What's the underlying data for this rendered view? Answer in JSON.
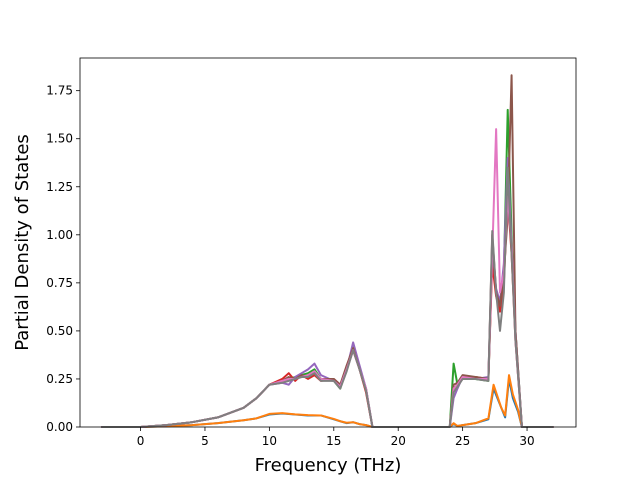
{
  "chart_data": {
    "type": "line",
    "title": "",
    "xlabel": "Frequency (THz)",
    "ylabel": "Partial Density of States",
    "xlim": [
      -4.7,
      33.8
    ],
    "ylim": [
      0,
      1.92
    ],
    "xticks": [
      0,
      5,
      10,
      15,
      20,
      25,
      30
    ],
    "yticks": [
      0.0,
      0.25,
      0.5,
      0.75,
      1.0,
      1.25,
      1.5,
      1.75
    ],
    "ytick_labels": [
      "0.00",
      "0.25",
      "0.50",
      "0.75",
      "1.00",
      "1.25",
      "1.50",
      "1.75"
    ],
    "grid": false,
    "legend": "none",
    "series": [
      {
        "color": "#1f77b4",
        "x": [
          -3,
          0,
          2,
          4,
          6,
          8,
          9,
          10,
          11,
          12,
          13,
          14,
          15,
          15.5,
          16,
          16.5,
          17,
          17.5,
          18,
          24,
          24.3,
          24.6,
          25,
          26,
          27,
          27.4,
          27.7,
          28,
          28.3,
          28.6,
          28.9,
          29.3,
          29.6,
          32
        ],
        "y": [
          0,
          0,
          0.004,
          0.01,
          0.02,
          0.035,
          0.045,
          0.065,
          0.07,
          0.065,
          0.06,
          0.06,
          0.04,
          0.03,
          0.02,
          0.025,
          0.015,
          0.01,
          0,
          0,
          0.015,
          0.005,
          0.01,
          0.02,
          0.04,
          0.2,
          0.15,
          0.1,
          0.05,
          0.25,
          0.15,
          0.08,
          0,
          0
        ]
      },
      {
        "color": "#ff7f0e",
        "x": [
          -3,
          0,
          2,
          4,
          6,
          8,
          9,
          10,
          11,
          12,
          13,
          14,
          15,
          15.5,
          16,
          16.5,
          17,
          17.5,
          18,
          24,
          24.3,
          24.6,
          25,
          26,
          27,
          27.4,
          27.7,
          28,
          28.3,
          28.6,
          28.9,
          29.3,
          29.6,
          32
        ],
        "y": [
          0,
          0,
          0.004,
          0.01,
          0.02,
          0.035,
          0.045,
          0.068,
          0.072,
          0.066,
          0.062,
          0.06,
          0.042,
          0.03,
          0.022,
          0.025,
          0.015,
          0.01,
          0,
          0,
          0.02,
          0.005,
          0.01,
          0.02,
          0.045,
          0.22,
          0.16,
          0.1,
          0.06,
          0.27,
          0.17,
          0.09,
          0,
          0
        ]
      },
      {
        "color": "#2ca02c",
        "x": [
          -3,
          0,
          2,
          4,
          6,
          8,
          9,
          10,
          11,
          11.5,
          12,
          12.5,
          13,
          13.5,
          14,
          15,
          15.5,
          16,
          16.5,
          17,
          17.5,
          18,
          24,
          24.3,
          24.6,
          25,
          26,
          27,
          27.3,
          27.6,
          27.9,
          28.2,
          28.5,
          28.8,
          29.1,
          29.6,
          32
        ],
        "y": [
          0,
          0,
          0.01,
          0.025,
          0.05,
          0.1,
          0.15,
          0.22,
          0.24,
          0.25,
          0.26,
          0.27,
          0.28,
          0.3,
          0.25,
          0.24,
          0.2,
          0.3,
          0.42,
          0.3,
          0.2,
          0,
          0,
          0.33,
          0.22,
          0.26,
          0.25,
          0.24,
          0.9,
          0.7,
          0.62,
          0.8,
          1.65,
          1.0,
          0.5,
          0,
          0
        ]
      },
      {
        "color": "#d62728",
        "x": [
          -3,
          0,
          2,
          4,
          6,
          8,
          9,
          10,
          11,
          11.5,
          12,
          12.5,
          13,
          13.5,
          14,
          15,
          15.5,
          16,
          16.5,
          17,
          17.5,
          18,
          24,
          24.3,
          24.6,
          25,
          26,
          27,
          27.3,
          27.6,
          27.9,
          28.2,
          28.5,
          28.8,
          29.1,
          29.6,
          32
        ],
        "y": [
          0,
          0,
          0.01,
          0.025,
          0.05,
          0.1,
          0.15,
          0.22,
          0.25,
          0.28,
          0.24,
          0.27,
          0.25,
          0.27,
          0.24,
          0.25,
          0.22,
          0.3,
          0.4,
          0.3,
          0.18,
          0,
          0,
          0.2,
          0.22,
          0.25,
          0.26,
          0.25,
          0.85,
          0.68,
          0.6,
          0.75,
          1.2,
          0.9,
          0.45,
          0,
          0
        ]
      },
      {
        "color": "#9467bd",
        "x": [
          -3,
          0,
          2,
          4,
          6,
          8,
          9,
          10,
          11,
          11.5,
          12,
          12.5,
          13,
          13.5,
          14,
          15,
          15.5,
          16,
          16.5,
          17,
          17.5,
          18,
          24,
          24.3,
          24.6,
          25,
          26,
          27,
          27.3,
          27.6,
          27.9,
          28.2,
          28.5,
          28.8,
          29.1,
          29.6,
          32
        ],
        "y": [
          0,
          0,
          0.01,
          0.025,
          0.05,
          0.1,
          0.15,
          0.22,
          0.23,
          0.22,
          0.26,
          0.28,
          0.3,
          0.33,
          0.27,
          0.24,
          0.21,
          0.3,
          0.44,
          0.32,
          0.2,
          0,
          0,
          0.15,
          0.2,
          0.26,
          0.25,
          0.26,
          0.95,
          0.72,
          0.65,
          0.85,
          1.4,
          0.95,
          0.5,
          0,
          0
        ]
      },
      {
        "color": "#8c564b",
        "x": [
          -3,
          0,
          2,
          4,
          6,
          8,
          9,
          10,
          11,
          11.5,
          12,
          12.5,
          13,
          13.5,
          14,
          15,
          15.5,
          16,
          16.5,
          17,
          17.5,
          18,
          24,
          24.3,
          24.6,
          25,
          26,
          27,
          27.3,
          27.6,
          27.9,
          28.2,
          28.5,
          28.8,
          29.1,
          29.6,
          32
        ],
        "y": [
          0,
          0,
          0.01,
          0.025,
          0.05,
          0.1,
          0.15,
          0.22,
          0.24,
          0.26,
          0.25,
          0.27,
          0.26,
          0.28,
          0.25,
          0.25,
          0.22,
          0.32,
          0.41,
          0.3,
          0.19,
          0,
          0,
          0.22,
          0.23,
          0.27,
          0.26,
          0.25,
          1.0,
          0.7,
          0.63,
          0.8,
          1.1,
          1.83,
          0.5,
          0,
          0
        ]
      },
      {
        "color": "#e377c2",
        "x": [
          -3,
          0,
          2,
          4,
          6,
          8,
          9,
          10,
          11,
          11.5,
          12,
          12.5,
          13,
          13.5,
          14,
          15,
          15.5,
          16,
          16.5,
          17,
          17.5,
          18,
          24,
          24.3,
          24.6,
          25,
          26,
          27,
          27.3,
          27.6,
          27.9,
          28.2,
          28.5,
          28.8,
          29.1,
          29.6,
          32
        ],
        "y": [
          0,
          0,
          0.01,
          0.025,
          0.05,
          0.1,
          0.15,
          0.22,
          0.24,
          0.25,
          0.25,
          0.26,
          0.27,
          0.29,
          0.25,
          0.24,
          0.21,
          0.3,
          0.4,
          0.3,
          0.2,
          0,
          0,
          0.2,
          0.22,
          0.26,
          0.25,
          0.25,
          0.9,
          1.55,
          0.7,
          0.8,
          1.2,
          0.95,
          0.45,
          0,
          0
        ]
      },
      {
        "color": "#7f7f7f",
        "x": [
          -3,
          0,
          2,
          4,
          6,
          8,
          9,
          10,
          11,
          11.5,
          12,
          12.5,
          13,
          13.5,
          14,
          15,
          15.5,
          16,
          16.5,
          17,
          17.5,
          18,
          24,
          24.3,
          24.6,
          25,
          26,
          27,
          27.3,
          27.6,
          27.9,
          28.2,
          28.5,
          28.8,
          29.1,
          29.6,
          32
        ],
        "y": [
          0,
          0,
          0.01,
          0.025,
          0.05,
          0.1,
          0.15,
          0.22,
          0.23,
          0.24,
          0.25,
          0.26,
          0.26,
          0.28,
          0.24,
          0.24,
          0.2,
          0.29,
          0.4,
          0.3,
          0.19,
          0,
          0,
          0.18,
          0.21,
          0.25,
          0.25,
          0.24,
          1.02,
          0.7,
          0.5,
          0.7,
          1.35,
          0.9,
          0.45,
          0,
          0
        ]
      }
    ]
  }
}
